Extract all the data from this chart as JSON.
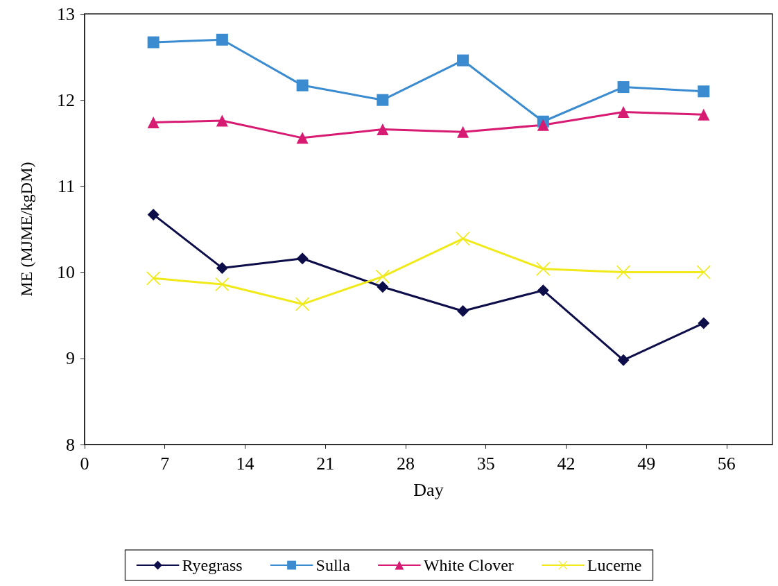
{
  "chart_data": {
    "type": "line",
    "xlabel": "Day",
    "ylabel": "ME (MJME/kgDM)",
    "x": [
      6,
      12,
      19,
      26,
      33,
      40,
      47,
      54
    ],
    "series": [
      {
        "name": "Ryegrass",
        "color": "#0d0d4a",
        "marker": "diamond",
        "values": [
          10.67,
          10.05,
          10.16,
          9.83,
          9.55,
          9.79,
          8.98,
          9.41
        ]
      },
      {
        "name": "Sulla",
        "color": "#3b8bd0",
        "marker": "square",
        "values": [
          12.67,
          12.7,
          12.17,
          12.0,
          12.46,
          11.75,
          12.15,
          12.1
        ]
      },
      {
        "name": "White Clover",
        "color": "#d81b72",
        "marker": "triangle",
        "values": [
          11.74,
          11.76,
          11.56,
          11.66,
          11.63,
          11.71,
          11.86,
          11.83
        ]
      },
      {
        "name": "Lucerne",
        "color": "#f0ea1a",
        "marker": "cross",
        "values": [
          9.93,
          9.86,
          9.63,
          9.95,
          10.39,
          10.04,
          10.0,
          10.0
        ]
      }
    ],
    "xlim": [
      0,
      60
    ],
    "xticks": [
      0,
      7,
      14,
      21,
      28,
      35,
      42,
      49,
      56
    ],
    "ylim": [
      8,
      13
    ],
    "yticks": [
      8,
      9,
      10,
      11,
      12,
      13
    ],
    "grid": false,
    "legend": "bottom",
    "line_style": "solid"
  }
}
